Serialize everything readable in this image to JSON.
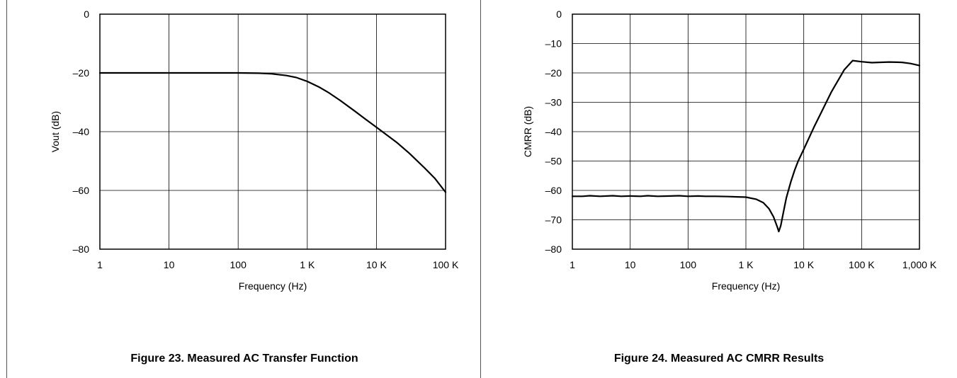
{
  "figures": [
    {
      "caption": "Figure 23. Measured AC Transfer Function"
    },
    {
      "caption": "Figure 24. Measured AC CMRR Results"
    }
  ],
  "chart_data": [
    {
      "type": "line",
      "title": "",
      "xlabel": "Frequency (Hz)",
      "ylabel": "Vout (dB)",
      "x_scale": "log",
      "xlim": [
        1,
        100000
      ],
      "ylim": [
        -80,
        0
      ],
      "grid": true,
      "x_ticks": [
        1,
        10,
        100,
        1000,
        10000,
        100000
      ],
      "x_tick_labels": [
        "1",
        "10",
        "100",
        "1 K",
        "10 K",
        "100 K"
      ],
      "y_ticks": [
        0,
        -20,
        -40,
        -60,
        -80
      ],
      "y_tick_labels": [
        "0",
        "–20",
        "–40",
        "–60",
        "–80"
      ],
      "series": [
        {
          "x": [
            1,
            10,
            100,
            200,
            300,
            500,
            700,
            1000,
            1500,
            2000,
            3000,
            5000,
            7000,
            10000,
            20000,
            30000,
            50000,
            70000,
            100000
          ],
          "y": [
            -20,
            -20,
            -20,
            -20.1,
            -20.3,
            -20.9,
            -21.6,
            -22.9,
            -24.9,
            -26.6,
            -29.4,
            -33.2,
            -35.8,
            -38.5,
            -43.8,
            -47.4,
            -52.4,
            -55.9,
            -60.6
          ]
        }
      ]
    },
    {
      "type": "line",
      "title": "",
      "xlabel": "Frequency (Hz)",
      "ylabel": "CMRR (dB)",
      "x_scale": "log",
      "xlim": [
        1,
        1000000
      ],
      "ylim": [
        -80,
        0
      ],
      "grid": true,
      "x_ticks": [
        1,
        10,
        100,
        1000,
        10000,
        100000,
        1000000
      ],
      "x_tick_labels": [
        "1",
        "10",
        "100",
        "1 K",
        "10 K",
        "100 K",
        "1,000 K"
      ],
      "y_ticks": [
        0,
        -10,
        -20,
        -30,
        -40,
        -50,
        -60,
        -70,
        -80
      ],
      "y_tick_labels": [
        "0",
        "–10",
        "–20",
        "–30",
        "–40",
        "–50",
        "–60",
        "–70",
        "–80"
      ],
      "series": [
        {
          "x": [
            1,
            1.5,
            2,
            3,
            5,
            7,
            10,
            15,
            20,
            30,
            50,
            70,
            100,
            150,
            200,
            300,
            500,
            700,
            1000,
            1500,
            2000,
            2500,
            3000,
            3500,
            3700,
            4000,
            4500,
            5000,
            6000,
            7000,
            8000,
            10000,
            15000,
            20000,
            30000,
            50000,
            70000,
            100000,
            150000,
            200000,
            300000,
            500000,
            700000,
            1000000
          ],
          "y": [
            -62,
            -62,
            -61.8,
            -62,
            -61.8,
            -62,
            -61.9,
            -62,
            -61.8,
            -62,
            -61.9,
            -61.8,
            -62,
            -61.9,
            -62,
            -62,
            -62.1,
            -62.2,
            -62.3,
            -63,
            -64.2,
            -66.2,
            -69,
            -72.5,
            -74,
            -72,
            -67,
            -62.5,
            -57,
            -53,
            -50,
            -46,
            -38.5,
            -33.5,
            -26.5,
            -19,
            -15.8,
            -16.2,
            -16.5,
            -16.4,
            -16.3,
            -16.4,
            -16.8,
            -17.5
          ]
        }
      ]
    }
  ]
}
